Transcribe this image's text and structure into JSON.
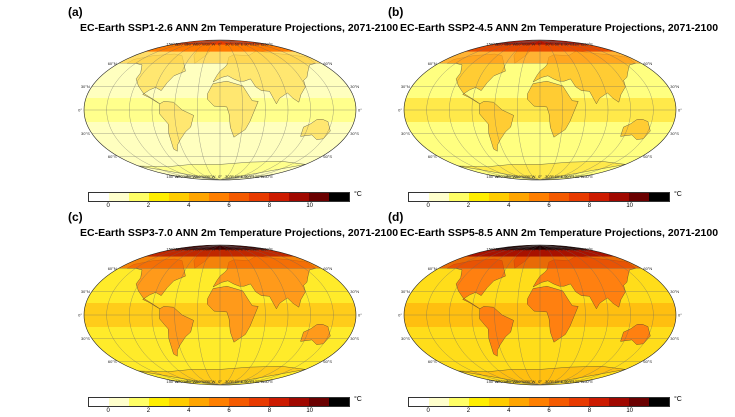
{
  "panels": [
    {
      "letter": "(a)",
      "title": "EC-Earth SSP1-2.6 ANN 2m Temperature Projections, 2071-2100",
      "level": 1
    },
    {
      "letter": "(b)",
      "title": "EC-Earth SSP2-4.5 ANN 2m Temperature Projections, 2071-2100",
      "level": 2
    },
    {
      "letter": "(c)",
      "title": "EC-Earth SSP3-7.0 ANN 2m Temperature Projections, 2071-2100",
      "level": 3
    },
    {
      "letter": "(d)",
      "title": "EC-Earth SSP5-8.5 ANN 2m Temperature Projections, 2071-2100",
      "level": 4
    }
  ],
  "lon_labels": [
    "150°W",
    "120°W",
    "90°W",
    "60°W",
    "30°W",
    "0°",
    "30°E",
    "60°E",
    "90°E",
    "120°E",
    "150°E"
  ],
  "lat_labels_left": [
    "60°N",
    "30°N",
    "0°",
    "30°S",
    "60°S"
  ],
  "lat_labels_right": [
    "60°N",
    "30°N",
    "0°",
    "30°S",
    "60°S"
  ],
  "colorbar": {
    "ticks": [
      "0",
      "2",
      "4",
      "6",
      "8",
      "10"
    ],
    "unit": "°C",
    "colors": [
      "#ffffff",
      "#ffffcc",
      "#ffff66",
      "#ffee00",
      "#ffcc00",
      "#ffa500",
      "#ff7f00",
      "#f45a00",
      "#e83a00",
      "#cc1a00",
      "#a00800",
      "#6a0000",
      "#000000"
    ]
  }
}
